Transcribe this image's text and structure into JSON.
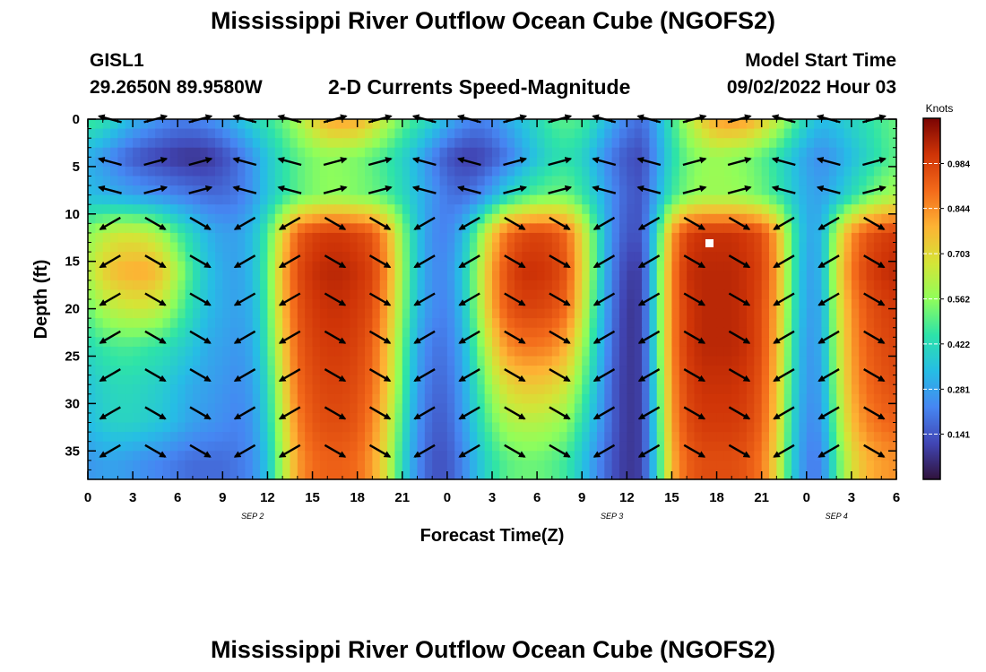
{
  "header": {
    "title": "Mississippi River Outflow Ocean Cube (NGOFS2)",
    "station_id": "GISL1",
    "location": "29.2650N  89.9580W",
    "subtitle": "2-D Currents Speed-Magnitude",
    "model_start_label": "Model Start Time",
    "model_start_value": "09/02/2022 Hour 03",
    "footer_title": "Mississippi River Outflow Ocean Cube (NGOFS2)"
  },
  "chart_data": {
    "type": "heatmap",
    "title": "2-D Currents Speed-Magnitude",
    "xlabel": "Forecast Time(Z)",
    "ylabel": "Depth (ft)",
    "x_tick_labels": [
      "0",
      "3",
      "6",
      "9",
      "12",
      "15",
      "18",
      "21",
      "0",
      "3",
      "6",
      "9",
      "12",
      "15",
      "18",
      "21",
      "0",
      "3",
      "6"
    ],
    "x_date_labels": [
      {
        "label": "SEP 2",
        "hours": 11
      },
      {
        "label": "SEP 3",
        "hours": 35
      },
      {
        "label": "SEP 4",
        "hours": 50
      }
    ],
    "xlim_hours": [
      0,
      54
    ],
    "y_ticks": [
      0,
      5,
      10,
      15,
      20,
      25,
      30,
      35
    ],
    "ylim": [
      0,
      38
    ],
    "y_inverted": true,
    "colorbar": {
      "label": "Knots",
      "ticks": [
        0.984,
        0.844,
        0.703,
        0.562,
        0.422,
        0.281,
        0.141
      ],
      "range": [
        0,
        1.125
      ]
    },
    "speed_field": {
      "time_hours": [
        0,
        1,
        2,
        3,
        4,
        5,
        6,
        7,
        8,
        9,
        10,
        11,
        12,
        13,
        14,
        15,
        16,
        17,
        18,
        19,
        20,
        21,
        22,
        23,
        24,
        25,
        26,
        27,
        28,
        29,
        30,
        31,
        32,
        33,
        34,
        35,
        36,
        37,
        38,
        39,
        40,
        41,
        42,
        43,
        44,
        45,
        46,
        47,
        48,
        49,
        50,
        51,
        52,
        53,
        54
      ],
      "depth_ft": [
        0,
        4,
        8,
        12,
        16,
        20,
        24,
        28,
        32,
        36
      ],
      "speed_knots": [
        [
          0.48,
          0.45,
          0.38,
          0.32,
          0.28,
          0.24,
          0.22,
          0.22,
          0.24,
          0.28,
          0.34,
          0.4,
          0.46,
          0.52,
          0.6,
          0.7,
          0.8,
          0.82,
          0.8,
          0.72,
          0.62,
          0.52,
          0.46,
          0.4,
          0.32,
          0.25,
          0.22,
          0.24,
          0.3,
          0.36,
          0.42,
          0.48,
          0.5,
          0.48,
          0.4,
          0.3,
          0.22,
          0.18,
          0.3,
          0.46,
          0.6,
          0.72,
          0.82,
          0.84,
          0.82,
          0.74,
          0.64,
          0.52,
          0.4,
          0.34,
          0.36,
          0.4,
          0.44,
          0.48,
          0.52
        ],
        [
          0.3,
          0.26,
          0.2,
          0.15,
          0.12,
          0.1,
          0.08,
          0.07,
          0.08,
          0.12,
          0.18,
          0.26,
          0.36,
          0.44,
          0.5,
          0.54,
          0.56,
          0.55,
          0.54,
          0.5,
          0.46,
          0.4,
          0.32,
          0.22,
          0.14,
          0.1,
          0.1,
          0.14,
          0.2,
          0.28,
          0.36,
          0.42,
          0.44,
          0.4,
          0.3,
          0.2,
          0.14,
          0.12,
          0.26,
          0.42,
          0.52,
          0.56,
          0.58,
          0.56,
          0.54,
          0.5,
          0.44,
          0.36,
          0.28,
          0.24,
          0.28,
          0.34,
          0.4,
          0.46,
          0.5
        ],
        [
          0.34,
          0.32,
          0.3,
          0.28,
          0.26,
          0.24,
          0.22,
          0.2,
          0.18,
          0.18,
          0.2,
          0.26,
          0.36,
          0.44,
          0.5,
          0.54,
          0.56,
          0.56,
          0.54,
          0.52,
          0.48,
          0.42,
          0.34,
          0.26,
          0.2,
          0.18,
          0.22,
          0.3,
          0.4,
          0.46,
          0.5,
          0.52,
          0.52,
          0.46,
          0.36,
          0.24,
          0.16,
          0.14,
          0.3,
          0.46,
          0.54,
          0.58,
          0.58,
          0.58,
          0.56,
          0.52,
          0.46,
          0.38,
          0.3,
          0.28,
          0.34,
          0.42,
          0.5,
          0.56,
          0.6
        ],
        [
          0.56,
          0.62,
          0.66,
          0.66,
          0.64,
          0.58,
          0.48,
          0.4,
          0.32,
          0.28,
          0.28,
          0.34,
          0.48,
          0.72,
          0.92,
          0.98,
          1.0,
          1.0,
          0.98,
          0.94,
          0.8,
          0.56,
          0.36,
          0.24,
          0.22,
          0.32,
          0.52,
          0.74,
          0.9,
          0.96,
          0.98,
          0.96,
          0.9,
          0.7,
          0.46,
          0.24,
          0.14,
          0.14,
          0.42,
          0.82,
          0.98,
          1.02,
          1.02,
          1.02,
          1.0,
          0.96,
          0.8,
          0.5,
          0.3,
          0.32,
          0.62,
          0.84,
          0.94,
          0.98,
          1.0
        ],
        [
          0.62,
          0.72,
          0.78,
          0.8,
          0.8,
          0.74,
          0.6,
          0.46,
          0.36,
          0.3,
          0.28,
          0.34,
          0.5,
          0.78,
          0.96,
          1.02,
          1.04,
          1.04,
          1.02,
          0.98,
          0.84,
          0.58,
          0.36,
          0.24,
          0.24,
          0.36,
          0.58,
          0.82,
          0.96,
          1.02,
          1.02,
          1.0,
          0.94,
          0.72,
          0.46,
          0.22,
          0.1,
          0.1,
          0.46,
          0.86,
          1.02,
          1.04,
          1.04,
          1.04,
          1.02,
          0.98,
          0.82,
          0.5,
          0.28,
          0.32,
          0.66,
          0.88,
          0.98,
          1.02,
          1.04
        ],
        [
          0.52,
          0.6,
          0.64,
          0.66,
          0.66,
          0.62,
          0.52,
          0.42,
          0.34,
          0.3,
          0.28,
          0.32,
          0.48,
          0.76,
          0.94,
          1.0,
          1.02,
          1.02,
          1.0,
          0.96,
          0.8,
          0.56,
          0.34,
          0.24,
          0.22,
          0.34,
          0.56,
          0.8,
          0.94,
          0.98,
          0.98,
          0.96,
          0.9,
          0.68,
          0.42,
          0.2,
          0.08,
          0.1,
          0.46,
          0.86,
          1.0,
          1.04,
          1.04,
          1.04,
          1.02,
          0.96,
          0.8,
          0.48,
          0.28,
          0.3,
          0.62,
          0.84,
          0.94,
          0.98,
          1.0
        ],
        [
          0.42,
          0.46,
          0.48,
          0.48,
          0.46,
          0.44,
          0.4,
          0.36,
          0.3,
          0.28,
          0.26,
          0.3,
          0.46,
          0.72,
          0.92,
          0.98,
          1.0,
          1.0,
          0.98,
          0.92,
          0.76,
          0.52,
          0.3,
          0.2,
          0.2,
          0.3,
          0.5,
          0.7,
          0.84,
          0.88,
          0.88,
          0.86,
          0.78,
          0.6,
          0.38,
          0.18,
          0.08,
          0.1,
          0.46,
          0.86,
          1.0,
          1.04,
          1.04,
          1.04,
          1.02,
          0.96,
          0.78,
          0.46,
          0.26,
          0.3,
          0.6,
          0.82,
          0.92,
          0.96,
          0.98
        ],
        [
          0.36,
          0.4,
          0.42,
          0.42,
          0.4,
          0.38,
          0.34,
          0.3,
          0.28,
          0.26,
          0.24,
          0.28,
          0.42,
          0.68,
          0.9,
          0.96,
          0.98,
          0.98,
          0.96,
          0.9,
          0.74,
          0.5,
          0.28,
          0.18,
          0.18,
          0.28,
          0.44,
          0.6,
          0.7,
          0.74,
          0.74,
          0.72,
          0.66,
          0.52,
          0.34,
          0.16,
          0.08,
          0.1,
          0.44,
          0.84,
          0.98,
          1.02,
          1.02,
          1.02,
          1.0,
          0.94,
          0.76,
          0.44,
          0.26,
          0.28,
          0.58,
          0.8,
          0.9,
          0.94,
          0.96
        ],
        [
          0.34,
          0.38,
          0.4,
          0.4,
          0.38,
          0.36,
          0.32,
          0.28,
          0.26,
          0.24,
          0.22,
          0.26,
          0.4,
          0.64,
          0.86,
          0.94,
          0.96,
          0.96,
          0.94,
          0.86,
          0.7,
          0.46,
          0.26,
          0.16,
          0.16,
          0.26,
          0.4,
          0.52,
          0.6,
          0.62,
          0.62,
          0.6,
          0.56,
          0.44,
          0.3,
          0.16,
          0.08,
          0.1,
          0.42,
          0.82,
          0.96,
          1.0,
          1.0,
          1.0,
          0.98,
          0.92,
          0.74,
          0.42,
          0.24,
          0.26,
          0.54,
          0.76,
          0.86,
          0.9,
          0.92
        ],
        [
          0.26,
          0.28,
          0.28,
          0.26,
          0.24,
          0.22,
          0.2,
          0.18,
          0.18,
          0.18,
          0.2,
          0.24,
          0.36,
          0.6,
          0.82,
          0.9,
          0.92,
          0.92,
          0.9,
          0.82,
          0.66,
          0.42,
          0.24,
          0.14,
          0.14,
          0.22,
          0.34,
          0.44,
          0.5,
          0.52,
          0.52,
          0.5,
          0.46,
          0.36,
          0.24,
          0.14,
          0.08,
          0.1,
          0.4,
          0.78,
          0.92,
          0.96,
          0.96,
          0.96,
          0.94,
          0.88,
          0.7,
          0.4,
          0.22,
          0.22,
          0.48,
          0.68,
          0.78,
          0.82,
          0.84
        ]
      ]
    }
  }
}
